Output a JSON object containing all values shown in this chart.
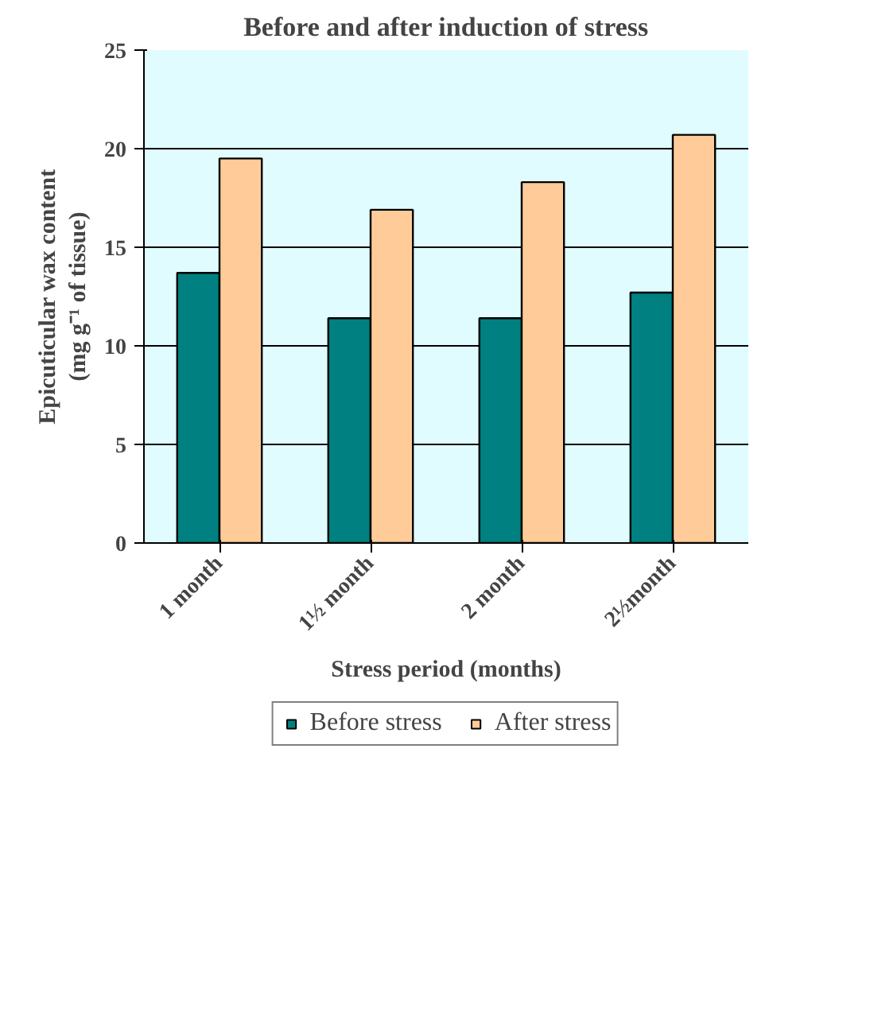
{
  "chart_data": {
    "type": "bar",
    "title": "Before and after induction of stress",
    "xlabel": "Stress period (months)",
    "ylabel": "Epicuticular wax content\n(mg g⁻¹ of tissue)",
    "categories": [
      "1 month",
      "1½ month",
      "2 month",
      "2½month"
    ],
    "series": [
      {
        "name": "Before stress",
        "color": "#008080",
        "values": [
          13.7,
          11.4,
          11.4,
          12.7
        ]
      },
      {
        "name": "After stress",
        "color": "#ffcc99",
        "values": [
          19.5,
          16.9,
          18.3,
          20.7
        ]
      }
    ],
    "ylim": [
      0,
      25
    ],
    "yticks": [
      0,
      5,
      10,
      15,
      20,
      25
    ],
    "grid": "y",
    "legend": "bottom"
  }
}
